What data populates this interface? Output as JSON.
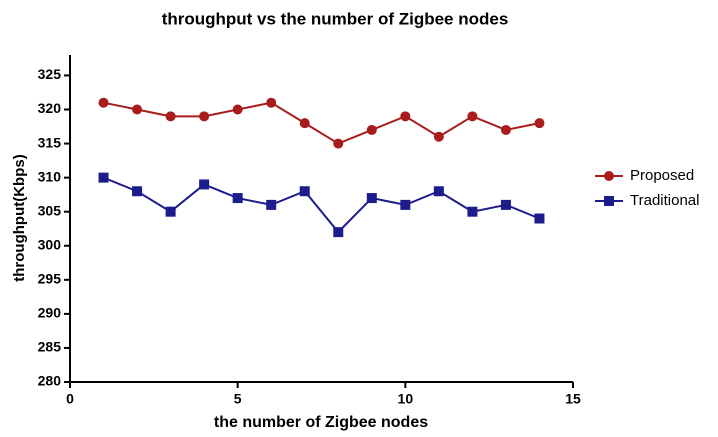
{
  "chart_data": {
    "type": "line",
    "title": "throughput vs the number of Zigbee nodes",
    "xlabel": "the number of Zigbee nodes",
    "ylabel": "throughput(Kbps)",
    "x": [
      1,
      2,
      3,
      4,
      5,
      6,
      7,
      8,
      9,
      10,
      11,
      12,
      13,
      14
    ],
    "series": [
      {
        "name": "Proposed",
        "color": "#a81c1c",
        "marker": "circle",
        "values": [
          321,
          320,
          319,
          319,
          320,
          321,
          318,
          315,
          317,
          319,
          316,
          319,
          317,
          318
        ]
      },
      {
        "name": "Traditional",
        "color": "#1c1c8c",
        "marker": "square",
        "values": [
          310,
          308,
          305,
          309,
          307,
          306,
          308,
          302,
          307,
          306,
          308,
          305,
          306,
          304
        ]
      }
    ],
    "xlim": [
      0,
      15
    ],
    "xticks": [
      0,
      5,
      10,
      15
    ],
    "ylim": [
      280,
      328
    ],
    "yticks": [
      280,
      285,
      290,
      295,
      300,
      305,
      310,
      315,
      320,
      325
    ],
    "grid": false,
    "legend": "right"
  }
}
